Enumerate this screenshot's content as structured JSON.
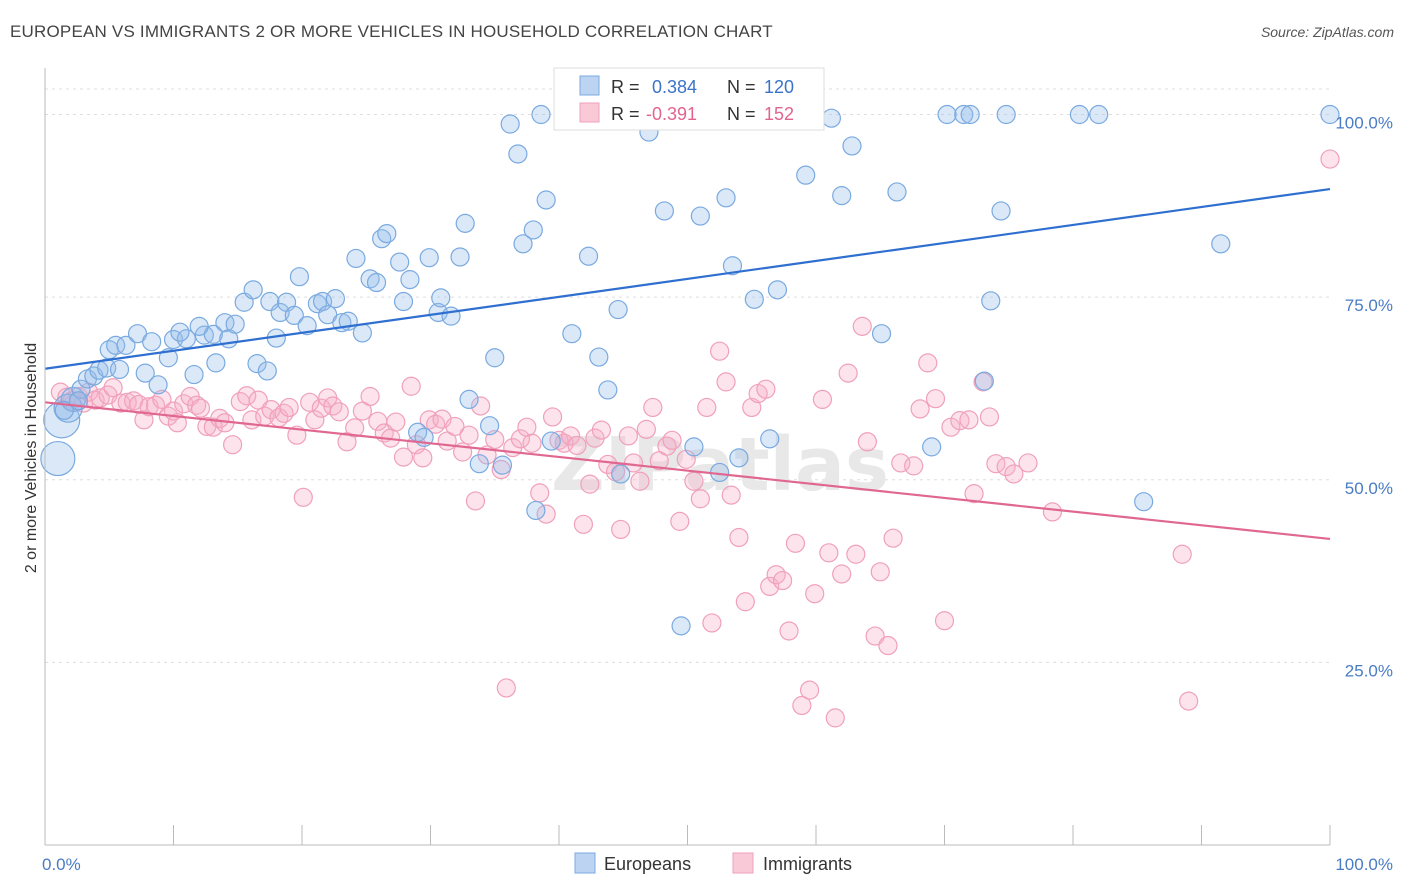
{
  "title": "EUROPEAN VS IMMIGRANTS 2 OR MORE VEHICLES IN HOUSEHOLD CORRELATION CHART",
  "source": "Source: ZipAtlas.com",
  "watermark": "ZIPatlas",
  "colors": {
    "blue": "#7aaae0",
    "blue_line": "#2f6fd0",
    "pink": "#f0a0bb",
    "pink_line": "#e06890",
    "grid": "#dddddd",
    "tick_text": "#4a7cc4"
  },
  "legend": {
    "r_label": "R =",
    "n_label": "N =",
    "blue_r": "0.384",
    "blue_n": "120",
    "pink_r": "-0.391",
    "pink_n": "152"
  },
  "bottom_legend": {
    "europeans": "Europeans",
    "immigrants": "Immigrants"
  },
  "chart_data": {
    "type": "scatter",
    "title": "EUROPEAN VS IMMIGRANTS 2 OR MORE VEHICLES IN HOUSEHOLD CORRELATION CHART",
    "ylabel": "2 or more Vehicles in Household",
    "xlabel": "",
    "xlim": [
      0,
      100
    ],
    "ylim": [
      0,
      105
    ],
    "x_tick_labels": [
      "0.0%",
      "100.0%"
    ],
    "y_tick_labels": [
      "25.0%",
      "50.0%",
      "75.0%",
      "100.0%"
    ],
    "y_tick_values": [
      25,
      50,
      75,
      100
    ],
    "grid": true,
    "legend_position": "top-center",
    "series": [
      {
        "name": "Europeans",
        "color": "#7aaae0",
        "trend": [
          [
            0,
            65.2
          ],
          [
            100,
            89.8
          ]
        ],
        "points": [
          [
            1.0,
            52.9
          ],
          [
            1.3,
            58.2
          ],
          [
            1.8,
            59.8
          ],
          [
            2.2,
            61.0
          ],
          [
            2.8,
            62.4
          ],
          [
            3.3,
            63.8
          ],
          [
            3.8,
            64.2
          ],
          [
            4.2,
            65.0
          ],
          [
            4.8,
            65.3
          ],
          [
            5.0,
            67.8
          ],
          [
            5.5,
            68.4
          ],
          [
            6.3,
            68.4
          ],
          [
            7.2,
            70.0
          ],
          [
            7.8,
            64.6
          ],
          [
            8.3,
            68.9
          ],
          [
            9.6,
            66.7
          ],
          [
            10.0,
            69.2
          ],
          [
            11.0,
            69.3
          ],
          [
            11.6,
            64.4
          ],
          [
            12.4,
            69.8
          ],
          [
            13.1,
            69.9
          ],
          [
            13.3,
            66.0
          ],
          [
            14.0,
            71.5
          ],
          [
            14.3,
            69.3
          ],
          [
            14.8,
            71.3
          ],
          [
            15.5,
            74.3
          ],
          [
            16.2,
            76.0
          ],
          [
            16.5,
            65.9
          ],
          [
            17.3,
            64.9
          ],
          [
            17.5,
            74.4
          ],
          [
            18.0,
            69.4
          ],
          [
            18.3,
            72.9
          ],
          [
            18.8,
            74.3
          ],
          [
            19.4,
            72.5
          ],
          [
            19.8,
            77.8
          ],
          [
            20.4,
            71.1
          ],
          [
            21.2,
            74.1
          ],
          [
            21.6,
            74.4
          ],
          [
            22.0,
            72.6
          ],
          [
            22.6,
            74.8
          ],
          [
            23.1,
            71.5
          ],
          [
            23.6,
            71.7
          ],
          [
            24.2,
            80.3
          ],
          [
            24.7,
            70.1
          ],
          [
            25.3,
            77.5
          ],
          [
            25.8,
            77.0
          ],
          [
            26.2,
            83.0
          ],
          [
            26.6,
            83.7
          ],
          [
            27.6,
            79.8
          ],
          [
            27.9,
            74.4
          ],
          [
            28.4,
            77.4
          ],
          [
            29.0,
            56.5
          ],
          [
            29.5,
            55.8
          ],
          [
            29.9,
            80.4
          ],
          [
            30.6,
            72.9
          ],
          [
            30.8,
            74.9
          ],
          [
            31.6,
            72.4
          ],
          [
            32.3,
            80.5
          ],
          [
            32.7,
            85.1
          ],
          [
            33.0,
            61.0
          ],
          [
            33.8,
            52.2
          ],
          [
            34.6,
            57.4
          ],
          [
            35.0,
            66.7
          ],
          [
            35.6,
            52.0
          ],
          [
            36.2,
            98.7
          ],
          [
            36.8,
            94.6
          ],
          [
            37.2,
            82.3
          ],
          [
            38.0,
            84.2
          ],
          [
            38.2,
            45.8
          ],
          [
            38.6,
            100.0
          ],
          [
            39.0,
            88.3
          ],
          [
            39.4,
            55.3
          ],
          [
            40.6,
            100.0
          ],
          [
            42.0,
            100.0
          ],
          [
            41.0,
            70.0
          ],
          [
            42.3,
            80.6
          ],
          [
            43.1,
            66.8
          ],
          [
            43.8,
            62.3
          ],
          [
            44.6,
            73.3
          ],
          [
            44.8,
            50.8
          ],
          [
            45.2,
            100.0
          ],
          [
            47.0,
            97.6
          ],
          [
            48.2,
            86.8
          ],
          [
            48.8,
            100.0
          ],
          [
            49.5,
            30.0
          ],
          [
            50.5,
            54.5
          ],
          [
            51.0,
            86.1
          ],
          [
            52.1,
            100.0
          ],
          [
            53.0,
            88.6
          ],
          [
            53.5,
            79.3
          ],
          [
            52.5,
            51.0
          ],
          [
            54.0,
            53.0
          ],
          [
            55.2,
            74.7
          ],
          [
            56.4,
            55.6
          ],
          [
            57.0,
            76.0
          ],
          [
            59.2,
            91.7
          ],
          [
            61.2,
            99.5
          ],
          [
            62.0,
            88.9
          ],
          [
            62.8,
            95.7
          ],
          [
            65.1,
            70.0
          ],
          [
            66.3,
            89.4
          ],
          [
            69.0,
            54.5
          ],
          [
            70.2,
            100.0
          ],
          [
            71.5,
            100.0
          ],
          [
            72.0,
            100.0
          ],
          [
            73.1,
            63.5
          ],
          [
            73.6,
            74.5
          ],
          [
            74.4,
            86.8
          ],
          [
            74.8,
            100.0
          ],
          [
            80.5,
            100.0
          ],
          [
            82.0,
            100.0
          ],
          [
            85.5,
            47.0
          ],
          [
            91.5,
            82.3
          ],
          [
            100.0,
            100.0
          ],
          [
            1.5,
            59.5
          ],
          [
            2.6,
            60.8
          ],
          [
            5.8,
            65.1
          ],
          [
            8.8,
            63.0
          ],
          [
            10.5,
            70.2
          ],
          [
            12.0,
            71.0
          ]
        ]
      },
      {
        "name": "Immigrants",
        "color": "#f0a0bb",
        "trend": [
          [
            0,
            60.6
          ],
          [
            100,
            41.9
          ]
        ],
        "points": [
          [
            1.2,
            62.0
          ],
          [
            1.7,
            61.3
          ],
          [
            2.1,
            60.8
          ],
          [
            2.6,
            61.4
          ],
          [
            3.0,
            60.5
          ],
          [
            3.4,
            62.0
          ],
          [
            3.9,
            60.9
          ],
          [
            4.3,
            61.2
          ],
          [
            4.9,
            61.6
          ],
          [
            5.3,
            62.6
          ],
          [
            5.9,
            60.5
          ],
          [
            6.4,
            60.6
          ],
          [
            6.9,
            60.8
          ],
          [
            7.3,
            60.3
          ],
          [
            7.7,
            58.2
          ],
          [
            8.1,
            60.0
          ],
          [
            8.6,
            60.2
          ],
          [
            9.1,
            61.0
          ],
          [
            9.6,
            58.7
          ],
          [
            10.0,
            59.4
          ],
          [
            10.3,
            57.8
          ],
          [
            10.8,
            60.4
          ],
          [
            11.3,
            61.4
          ],
          [
            11.8,
            60.2
          ],
          [
            12.1,
            59.8
          ],
          [
            12.6,
            57.3
          ],
          [
            13.1,
            57.2
          ],
          [
            13.6,
            58.4
          ],
          [
            14.0,
            57.8
          ],
          [
            14.6,
            54.8
          ],
          [
            15.2,
            60.7
          ],
          [
            15.7,
            61.5
          ],
          [
            16.1,
            58.2
          ],
          [
            16.6,
            60.9
          ],
          [
            17.1,
            58.7
          ],
          [
            17.6,
            59.6
          ],
          [
            18.2,
            58.5
          ],
          [
            18.6,
            59.1
          ],
          [
            19.0,
            59.9
          ],
          [
            19.6,
            56.1
          ],
          [
            20.1,
            47.6
          ],
          [
            20.6,
            60.6
          ],
          [
            21.0,
            58.2
          ],
          [
            21.5,
            59.8
          ],
          [
            22.0,
            61.2
          ],
          [
            22.4,
            60.1
          ],
          [
            22.9,
            59.3
          ],
          [
            23.5,
            55.2
          ],
          [
            24.1,
            57.1
          ],
          [
            24.7,
            59.4
          ],
          [
            25.3,
            61.4
          ],
          [
            25.9,
            58.0
          ],
          [
            26.4,
            56.4
          ],
          [
            26.9,
            55.7
          ],
          [
            27.3,
            57.9
          ],
          [
            27.9,
            53.1
          ],
          [
            28.5,
            62.8
          ],
          [
            28.9,
            54.8
          ],
          [
            29.4,
            53.0
          ],
          [
            29.9,
            58.2
          ],
          [
            30.4,
            57.6
          ],
          [
            30.9,
            58.3
          ],
          [
            31.3,
            55.3
          ],
          [
            31.9,
            57.3
          ],
          [
            32.5,
            53.8
          ],
          [
            33.0,
            56.1
          ],
          [
            33.5,
            47.1
          ],
          [
            33.9,
            60.1
          ],
          [
            34.4,
            53.4
          ],
          [
            35.0,
            55.5
          ],
          [
            35.5,
            51.4
          ],
          [
            35.9,
            21.5
          ],
          [
            36.4,
            54.4
          ],
          [
            37.0,
            55.6
          ],
          [
            37.5,
            57.2
          ],
          [
            37.9,
            55.0
          ],
          [
            38.5,
            48.2
          ],
          [
            39.0,
            45.3
          ],
          [
            39.5,
            58.6
          ],
          [
            40.0,
            55.4
          ],
          [
            40.4,
            55.0
          ],
          [
            40.9,
            56.0
          ],
          [
            41.4,
            54.7
          ],
          [
            41.9,
            43.9
          ],
          [
            42.4,
            49.4
          ],
          [
            42.8,
            55.7
          ],
          [
            43.3,
            56.8
          ],
          [
            43.8,
            52.1
          ],
          [
            44.4,
            51.1
          ],
          [
            44.8,
            43.2
          ],
          [
            45.4,
            56.0
          ],
          [
            45.8,
            52.3
          ],
          [
            46.3,
            49.8
          ],
          [
            46.8,
            56.9
          ],
          [
            47.3,
            59.9
          ],
          [
            47.8,
            52.6
          ],
          [
            48.4,
            54.6
          ],
          [
            48.8,
            55.4
          ],
          [
            49.4,
            44.3
          ],
          [
            49.9,
            52.8
          ],
          [
            50.5,
            49.8
          ],
          [
            51.0,
            47.4
          ],
          [
            51.5,
            59.9
          ],
          [
            51.9,
            30.4
          ],
          [
            52.5,
            67.6
          ],
          [
            53.0,
            63.4
          ],
          [
            53.4,
            47.9
          ],
          [
            54.0,
            42.1
          ],
          [
            54.5,
            33.3
          ],
          [
            55.0,
            59.9
          ],
          [
            55.5,
            61.8
          ],
          [
            56.1,
            62.4
          ],
          [
            56.4,
            35.4
          ],
          [
            56.9,
            37.0
          ],
          [
            57.4,
            36.2
          ],
          [
            57.9,
            29.3
          ],
          [
            58.4,
            41.3
          ],
          [
            58.9,
            19.1
          ],
          [
            59.5,
            21.2
          ],
          [
            59.9,
            34.4
          ],
          [
            60.5,
            61.0
          ],
          [
            61.0,
            40.0
          ],
          [
            61.5,
            17.4
          ],
          [
            62.0,
            37.1
          ],
          [
            62.5,
            64.6
          ],
          [
            63.1,
            39.8
          ],
          [
            63.6,
            71.0
          ],
          [
            64.0,
            55.2
          ],
          [
            64.6,
            28.6
          ],
          [
            65.0,
            37.4
          ],
          [
            65.6,
            27.3
          ],
          [
            66.0,
            42.0
          ],
          [
            66.6,
            52.3
          ],
          [
            67.6,
            51.9
          ],
          [
            68.1,
            59.7
          ],
          [
            68.7,
            66.0
          ],
          [
            69.3,
            61.1
          ],
          [
            70.0,
            30.7
          ],
          [
            70.5,
            57.2
          ],
          [
            71.2,
            58.1
          ],
          [
            71.9,
            58.2
          ],
          [
            72.3,
            48.1
          ],
          [
            73.0,
            63.4
          ],
          [
            73.5,
            58.6
          ],
          [
            74.0,
            52.2
          ],
          [
            74.8,
            51.8
          ],
          [
            75.4,
            50.8
          ],
          [
            76.5,
            52.3
          ],
          [
            78.4,
            45.6
          ],
          [
            88.5,
            39.8
          ],
          [
            89.0,
            19.7
          ],
          [
            100.0,
            93.9
          ]
        ]
      }
    ]
  }
}
